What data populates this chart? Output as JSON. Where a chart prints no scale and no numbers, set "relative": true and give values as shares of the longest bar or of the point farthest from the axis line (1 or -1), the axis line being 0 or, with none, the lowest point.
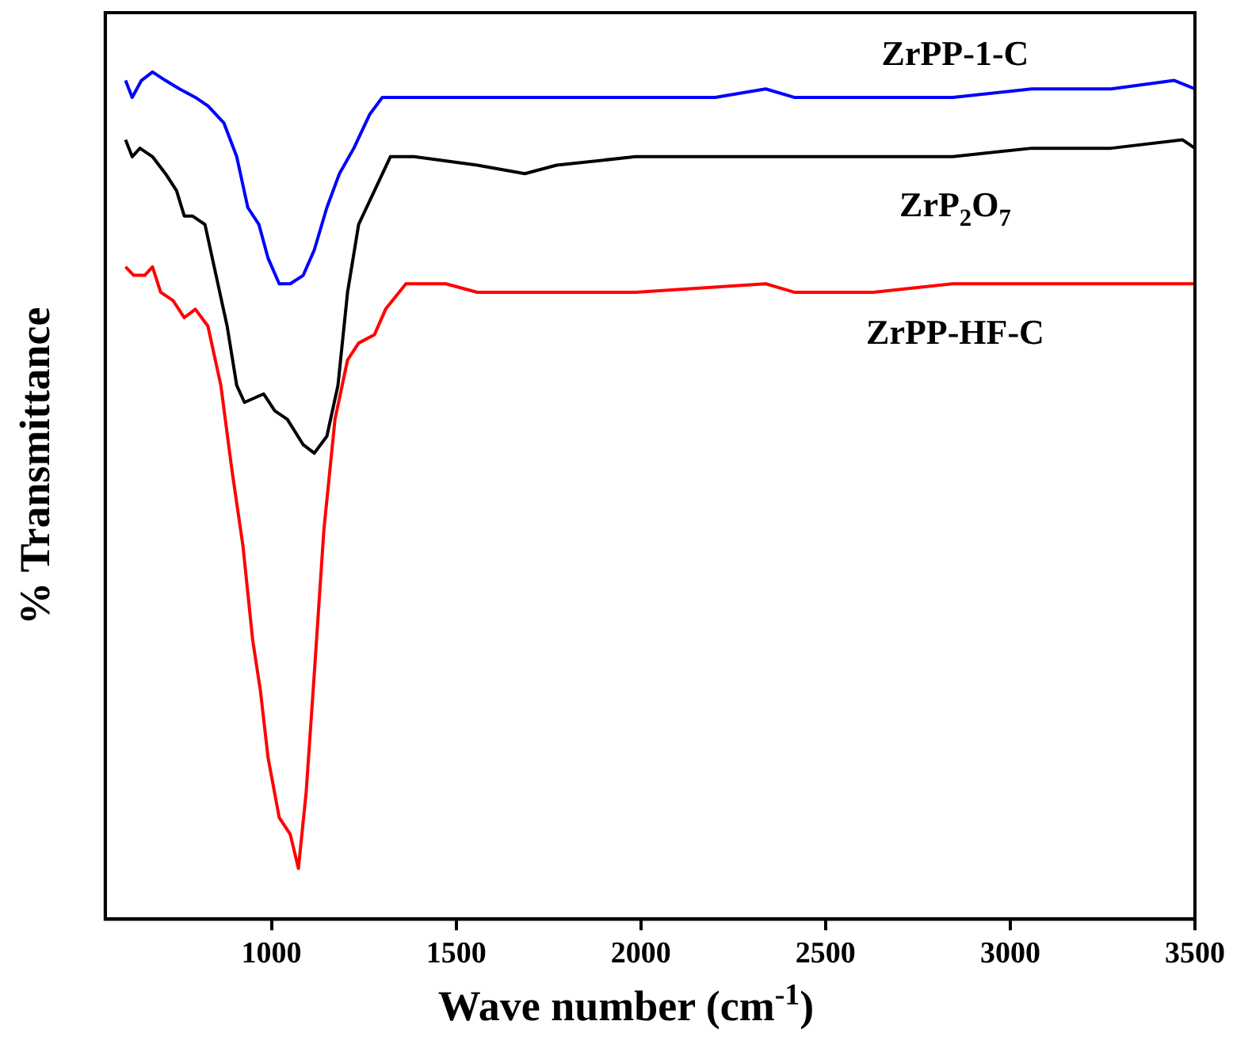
{
  "chart_data": {
    "type": "line",
    "relative": true,
    "xlabel": "Wave number (cm$^{-1}$)",
    "ylabel": "% Transmittance",
    "xlim": [
      550,
      3500
    ],
    "xticks": [
      1000,
      1500,
      2000,
      2500,
      3000,
      3500
    ],
    "legend": false,
    "series": [
      {
        "name": "ZrPP-1-C",
        "color": "#0000ff",
        "x": [
          605,
          623,
          648,
          678,
          713,
          751,
          794,
          828,
          871,
          906,
          936,
          966,
          991,
          1021,
          1051,
          1086,
          1116,
          1150,
          1184,
          1223,
          1266,
          1300,
          1386,
          1557,
          1772,
          1986,
          2201,
          2338,
          2415,
          2629,
          2844,
          3058,
          3273,
          3444,
          3500
        ],
        "values": [
          0.99,
          0.97,
          0.99,
          1.0,
          0.99,
          0.98,
          0.97,
          0.96,
          0.94,
          0.9,
          0.84,
          0.82,
          0.78,
          0.75,
          0.75,
          0.76,
          0.79,
          0.84,
          0.88,
          0.91,
          0.95,
          0.97,
          0.97,
          0.97,
          0.97,
          0.97,
          0.97,
          0.98,
          0.97,
          0.97,
          0.97,
          0.98,
          0.98,
          0.99,
          0.98
        ]
      },
      {
        "name": "ZrP$_{2}$O$_{7}$",
        "color": "#000000",
        "x": [
          605,
          623,
          644,
          678,
          713,
          743,
          764,
          786,
          820,
          850,
          880,
          906,
          927,
          979,
          1009,
          1043,
          1086,
          1116,
          1150,
          1180,
          1206,
          1236,
          1279,
          1322,
          1386,
          1557,
          1686,
          1772,
          1986,
          2338,
          2415,
          2629,
          2844,
          3058,
          3273,
          3466,
          3500
        ],
        "values": [
          0.92,
          0.9,
          0.91,
          0.9,
          0.88,
          0.86,
          0.83,
          0.83,
          0.82,
          0.76,
          0.7,
          0.63,
          0.61,
          0.62,
          0.6,
          0.59,
          0.56,
          0.55,
          0.57,
          0.63,
          0.74,
          0.82,
          0.86,
          0.9,
          0.9,
          0.89,
          0.88,
          0.89,
          0.9,
          0.9,
          0.9,
          0.9,
          0.9,
          0.91,
          0.91,
          0.92,
          0.91
        ]
      },
      {
        "name": "ZrPP-HF-C",
        "color": "#ff0000",
        "x": [
          605,
          627,
          657,
          678,
          700,
          734,
          764,
          794,
          828,
          863,
          893,
          923,
          949,
          970,
          991,
          1021,
          1051,
          1073,
          1094,
          1116,
          1142,
          1172,
          1206,
          1236,
          1279,
          1309,
          1364,
          1472,
          1557,
          1686,
          1772,
          1986,
          2338,
          2415,
          2629,
          2844,
          3058,
          3273,
          3466,
          3500
        ],
        "values": [
          0.77,
          0.76,
          0.76,
          0.77,
          0.74,
          0.73,
          0.71,
          0.72,
          0.7,
          0.63,
          0.53,
          0.44,
          0.33,
          0.27,
          0.19,
          0.12,
          0.1,
          0.06,
          0.15,
          0.29,
          0.46,
          0.59,
          0.66,
          0.68,
          0.69,
          0.72,
          0.75,
          0.75,
          0.74,
          0.74,
          0.74,
          0.74,
          0.75,
          0.74,
          0.74,
          0.75,
          0.75,
          0.75,
          0.75,
          0.75
        ]
      }
    ]
  }
}
